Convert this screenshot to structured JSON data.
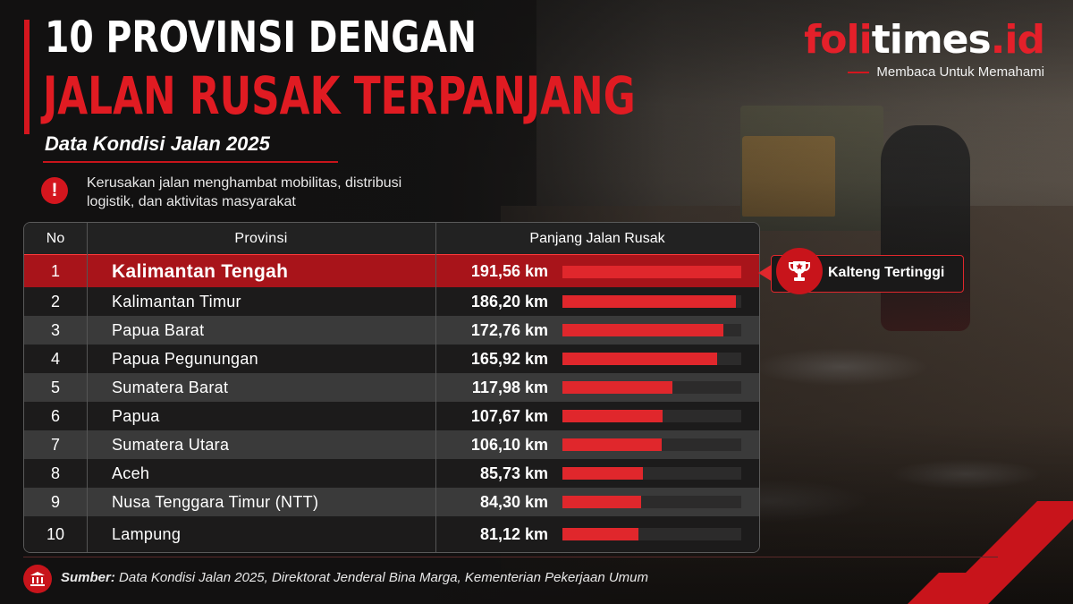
{
  "header": {
    "title_line1": "10 PROVINSI DENGAN",
    "title_line2": "JALAN RUSAK TERPANJANG",
    "subtitle": "Data Kondisi Jalan 2025",
    "note": "Kerusakan jalan menghambat mobilitas, distribusi logistik, dan aktivitas masyarakat",
    "note_icon": "exclamation-icon"
  },
  "logo": {
    "part_red_1": "foli",
    "part_white": "times",
    "part_red_2": ".id",
    "tagline": "Membaca Untuk Memahami"
  },
  "table": {
    "headers": {
      "no": "No",
      "province": "Provinsi",
      "length": "Panjang Jalan Rusak"
    }
  },
  "callout": {
    "label": "Kalteng Tertinggi",
    "icon": "trophy-icon"
  },
  "footer": {
    "icon": "institution-icon",
    "source_label": "Sumber:",
    "source_text": "Data Kondisi Jalan 2025, Direktorat Jenderal Bina Marga, Kementerian Pekerjaan Umum"
  },
  "colors": {
    "accent": "#d4161e",
    "bar": "#e0272c",
    "highlight_row": "#a8141a"
  },
  "chart_data": {
    "type": "bar",
    "orientation": "horizontal",
    "rows": [
      {
        "no": "1",
        "province": "Kalimantan Tengah",
        "label": "191,56 km",
        "value": 191.56
      },
      {
        "no": "2",
        "province": "Kalimantan Timur",
        "label": "186,20 km",
        "value": 186.2
      },
      {
        "no": "3",
        "province": "Papua Barat",
        "label": "172,76 km",
        "value": 172.76
      },
      {
        "no": "4",
        "province": "Papua Pegunungan",
        "label": "165,92 km",
        "value": 165.92
      },
      {
        "no": "5",
        "province": "Sumatera Barat",
        "label": "117,98 km",
        "value": 117.98
      },
      {
        "no": "6",
        "province": "Papua",
        "label": "107,67 km",
        "value": 107.67
      },
      {
        "no": "7",
        "province": "Sumatera Utara",
        "label": "106,10 km",
        "value": 106.1
      },
      {
        "no": "8",
        "province": "Aceh",
        "label": "85,73 km",
        "value": 85.73
      },
      {
        "no": "9",
        "province": "Nusa Tenggara Timur (NTT)",
        "label": "84,30 km",
        "value": 84.3
      },
      {
        "no": "10",
        "province": "Lampung",
        "label": "81,12 km",
        "value": 81.12
      }
    ],
    "unit": "km",
    "xlim": [
      0,
      191.56
    ],
    "highlight_row": 1
  }
}
